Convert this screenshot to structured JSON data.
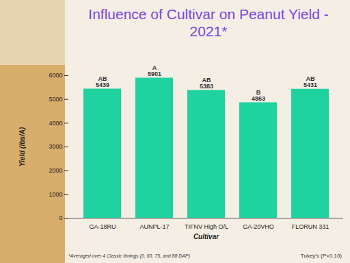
{
  "chart_data": {
    "type": "bar",
    "title": "Influence of Cultivar on Peanut Yield - 2021*",
    "x_label": "Cultivar",
    "y_label": "Yield (lbs/A)",
    "categories": [
      "GA-18RU",
      "AUNPL-17",
      "TIFNV High O/L",
      "GA-20VHO",
      "FLORUN 331"
    ],
    "values": [
      5439,
      5901,
      5383,
      4863,
      5431
    ],
    "annotations": [
      "AB",
      "A",
      "AB",
      "B",
      "AB"
    ],
    "data_labels": true,
    "color": "#20d2a0",
    "ylim": [
      0,
      6000
    ],
    "yticks": [
      0,
      1000,
      2000,
      3000,
      4000,
      5000,
      6000
    ],
    "grid": false,
    "notes": [
      "*Averaged over 4 Classic timings (0, 63, 75, and 88 DAP)",
      "Tukey's (P<0.10)"
    ]
  }
}
